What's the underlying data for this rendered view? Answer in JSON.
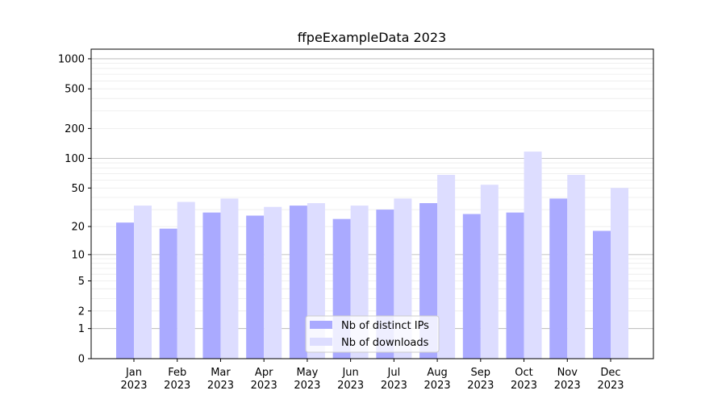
{
  "chart_data": {
    "type": "bar",
    "title": "ffpeExampleData 2023",
    "xlabel": "",
    "ylabel": "",
    "yscale": "log(1+y)",
    "ylim": [
      0,
      1250
    ],
    "yticks": [
      0,
      1,
      2,
      5,
      10,
      20,
      50,
      100,
      200,
      500,
      1000
    ],
    "grid": true,
    "legend_position": "bottom-center",
    "categories": [
      "Jan\n2023",
      "Feb\n2023",
      "Mar\n2023",
      "Apr\n2023",
      "May\n2023",
      "Jun\n2023",
      "Jul\n2023",
      "Aug\n2023",
      "Sep\n2023",
      "Oct\n2023",
      "Nov\n2023",
      "Dec\n2023"
    ],
    "series": [
      {
        "name": "Nb of distinct IPs",
        "color": "#aaaaff",
        "values": [
          22,
          19,
          28,
          26,
          33,
          24,
          30,
          35,
          27,
          28,
          39,
          18
        ]
      },
      {
        "name": "Nb of downloads",
        "color": "#ddddff",
        "values": [
          33,
          36,
          39,
          32,
          35,
          33,
          39,
          68,
          54,
          117,
          68,
          50
        ]
      }
    ]
  }
}
